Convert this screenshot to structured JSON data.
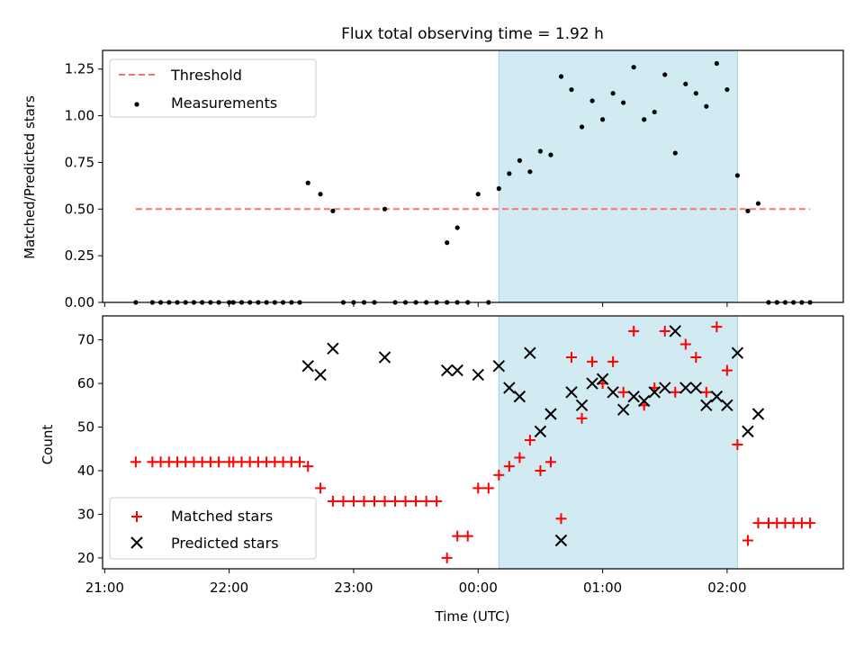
{
  "chart_data": [
    {
      "type": "scatter",
      "title": "Flux total observing time = 1.92 h",
      "ylabel": "Matched/Predicted stars",
      "xlabel": "",
      "ylim": [
        0,
        1.35
      ],
      "yticks": [
        0.0,
        0.25,
        0.5,
        0.75,
        1.0,
        1.25
      ],
      "ytick_labels": [
        "0.00",
        "0.25",
        "0.50",
        "0.75",
        "1.00",
        "1.25"
      ],
      "xlim": [
        "20:59",
        "02:56"
      ],
      "shaded_span": [
        "00:10",
        "02:05"
      ],
      "shaded_color": "#add8e6",
      "legend_position": "top-left",
      "threshold": {
        "name": "Threshold",
        "value": 0.5,
        "x_start": "21:15",
        "x_end": "02:40",
        "color": "#ff7070"
      },
      "series": [
        {
          "name": "Measurements",
          "color": "#000000",
          "marker": "dot",
          "points": [
            [
              "21:15",
              0.0
            ],
            [
              "21:23",
              0.0
            ],
            [
              "21:27",
              0.0
            ],
            [
              "21:31",
              0.0
            ],
            [
              "21:35",
              0.0
            ],
            [
              "21:39",
              0.0
            ],
            [
              "21:43",
              0.0
            ],
            [
              "21:47",
              0.0
            ],
            [
              "21:51",
              0.0
            ],
            [
              "21:55",
              0.0
            ],
            [
              "22:00",
              0.0
            ],
            [
              "22:02",
              0.0
            ],
            [
              "22:06",
              0.0
            ],
            [
              "22:10",
              0.0
            ],
            [
              "22:14",
              0.0
            ],
            [
              "22:18",
              0.0
            ],
            [
              "22:22",
              0.0
            ],
            [
              "22:26",
              0.0
            ],
            [
              "22:30",
              0.0
            ],
            [
              "22:34",
              0.0
            ],
            [
              "22:38",
              0.64
            ],
            [
              "22:44",
              0.58
            ],
            [
              "22:50",
              0.49
            ],
            [
              "22:55",
              0.0
            ],
            [
              "23:00",
              0.0
            ],
            [
              "23:05",
              0.0
            ],
            [
              "23:10",
              0.0
            ],
            [
              "23:15",
              0.5
            ],
            [
              "23:20",
              0.0
            ],
            [
              "23:25",
              0.0
            ],
            [
              "23:30",
              0.0
            ],
            [
              "23:35",
              0.0
            ],
            [
              "23:40",
              0.0
            ],
            [
              "23:45",
              0.0
            ],
            [
              "23:50",
              0.0
            ],
            [
              "23:45",
              0.32
            ],
            [
              "23:50",
              0.4
            ],
            [
              "23:55",
              0.0
            ],
            [
              "00:00",
              0.58
            ],
            [
              "00:05",
              0.0
            ],
            [
              "00:10",
              0.61
            ],
            [
              "00:15",
              0.69
            ],
            [
              "00:20",
              0.76
            ],
            [
              "00:25",
              0.7
            ],
            [
              "00:30",
              0.81
            ],
            [
              "00:35",
              0.79
            ],
            [
              "00:40",
              1.21
            ],
            [
              "00:45",
              1.14
            ],
            [
              "00:50",
              0.94
            ],
            [
              "00:55",
              1.08
            ],
            [
              "01:00",
              0.98
            ],
            [
              "01:05",
              1.12
            ],
            [
              "01:10",
              1.07
            ],
            [
              "01:15",
              1.26
            ],
            [
              "01:20",
              0.98
            ],
            [
              "01:25",
              1.02
            ],
            [
              "01:30",
              1.22
            ],
            [
              "01:35",
              0.8
            ],
            [
              "01:40",
              1.17
            ],
            [
              "01:45",
              1.12
            ],
            [
              "01:50",
              1.05
            ],
            [
              "01:55",
              1.28
            ],
            [
              "02:00",
              1.14
            ],
            [
              "02:05",
              0.68
            ],
            [
              "02:10",
              0.49
            ],
            [
              "02:15",
              0.53
            ],
            [
              "02:20",
              0.0
            ],
            [
              "02:24",
              0.0
            ],
            [
              "02:28",
              0.0
            ],
            [
              "02:32",
              0.0
            ],
            [
              "02:36",
              0.0
            ],
            [
              "02:40",
              0.0
            ]
          ]
        }
      ]
    },
    {
      "type": "scatter",
      "title": "",
      "ylabel": "Count",
      "xlabel": "Time (UTC)",
      "ylim": [
        17.5,
        75.5
      ],
      "yticks": [
        20,
        30,
        40,
        50,
        60,
        70
      ],
      "ytick_labels": [
        "20",
        "30",
        "40",
        "50",
        "60",
        "70"
      ],
      "xlim": [
        "20:59",
        "02:56"
      ],
      "xticks": [
        "21:00",
        "22:00",
        "23:00",
        "00:00",
        "01:00",
        "02:00"
      ],
      "xtick_labels": [
        "21:00",
        "22:00",
        "23:00",
        "00:00",
        "01:00",
        "02:00"
      ],
      "shaded_span": [
        "00:10",
        "02:05"
      ],
      "shaded_color": "#add8e6",
      "legend_position": "bottom-left",
      "series": [
        {
          "name": "Matched stars",
          "color": "#ff0000",
          "marker": "plus",
          "points": [
            [
              "21:15",
              42
            ],
            [
              "21:23",
              42
            ],
            [
              "21:27",
              42
            ],
            [
              "21:31",
              42
            ],
            [
              "21:35",
              42
            ],
            [
              "21:39",
              42
            ],
            [
              "21:43",
              42
            ],
            [
              "21:47",
              42
            ],
            [
              "21:51",
              42
            ],
            [
              "21:55",
              42
            ],
            [
              "22:00",
              42
            ],
            [
              "22:02",
              42
            ],
            [
              "22:06",
              42
            ],
            [
              "22:10",
              42
            ],
            [
              "22:14",
              42
            ],
            [
              "22:18",
              42
            ],
            [
              "22:22",
              42
            ],
            [
              "22:26",
              42
            ],
            [
              "22:30",
              42
            ],
            [
              "22:34",
              42
            ],
            [
              "22:38",
              41
            ],
            [
              "22:44",
              36
            ],
            [
              "22:50",
              33
            ],
            [
              "22:55",
              33
            ],
            [
              "23:00",
              33
            ],
            [
              "23:05",
              33
            ],
            [
              "23:10",
              33
            ],
            [
              "23:15",
              33
            ],
            [
              "23:20",
              33
            ],
            [
              "23:25",
              33
            ],
            [
              "23:30",
              33
            ],
            [
              "23:35",
              33
            ],
            [
              "23:40",
              33
            ],
            [
              "23:45",
              20
            ],
            [
              "23:50",
              25
            ],
            [
              "23:55",
              25
            ],
            [
              "00:00",
              36
            ],
            [
              "00:05",
              36
            ],
            [
              "00:10",
              39
            ],
            [
              "00:15",
              41
            ],
            [
              "00:20",
              43
            ],
            [
              "00:25",
              47
            ],
            [
              "00:30",
              40
            ],
            [
              "00:35",
              42
            ],
            [
              "00:40",
              29
            ],
            [
              "00:45",
              66
            ],
            [
              "00:50",
              52
            ],
            [
              "00:55",
              65
            ],
            [
              "01:00",
              60
            ],
            [
              "01:05",
              65
            ],
            [
              "01:10",
              58
            ],
            [
              "01:15",
              72
            ],
            [
              "01:20",
              55
            ],
            [
              "01:25",
              59
            ],
            [
              "01:30",
              72
            ],
            [
              "01:35",
              58
            ],
            [
              "01:40",
              69
            ],
            [
              "01:45",
              66
            ],
            [
              "01:50",
              58
            ],
            [
              "01:55",
              73
            ],
            [
              "02:00",
              63
            ],
            [
              "02:05",
              46
            ],
            [
              "02:10",
              24
            ],
            [
              "02:15",
              28
            ],
            [
              "02:20",
              28
            ],
            [
              "02:24",
              28
            ],
            [
              "02:28",
              28
            ],
            [
              "02:32",
              28
            ],
            [
              "02:36",
              28
            ],
            [
              "02:40",
              28
            ]
          ]
        },
        {
          "name": "Predicted stars",
          "color": "#000000",
          "marker": "x",
          "points": [
            [
              "22:38",
              64
            ],
            [
              "22:44",
              62
            ],
            [
              "22:50",
              68
            ],
            [
              "23:15",
              66
            ],
            [
              "23:45",
              63
            ],
            [
              "23:50",
              63
            ],
            [
              "00:00",
              62
            ],
            [
              "00:10",
              64
            ],
            [
              "00:15",
              59
            ],
            [
              "00:20",
              57
            ],
            [
              "00:25",
              67
            ],
            [
              "00:30",
              49
            ],
            [
              "00:35",
              53
            ],
            [
              "00:40",
              24
            ],
            [
              "00:45",
              58
            ],
            [
              "00:50",
              55
            ],
            [
              "00:55",
              60
            ],
            [
              "01:00",
              61
            ],
            [
              "01:05",
              58
            ],
            [
              "01:10",
              54
            ],
            [
              "01:15",
              57
            ],
            [
              "01:20",
              56
            ],
            [
              "01:25",
              58
            ],
            [
              "01:30",
              59
            ],
            [
              "01:35",
              72
            ],
            [
              "01:40",
              59
            ],
            [
              "01:45",
              59
            ],
            [
              "01:50",
              55
            ],
            [
              "01:55",
              57
            ],
            [
              "02:00",
              55
            ],
            [
              "02:05",
              67
            ],
            [
              "02:10",
              49
            ],
            [
              "02:15",
              53
            ]
          ]
        }
      ]
    }
  ]
}
